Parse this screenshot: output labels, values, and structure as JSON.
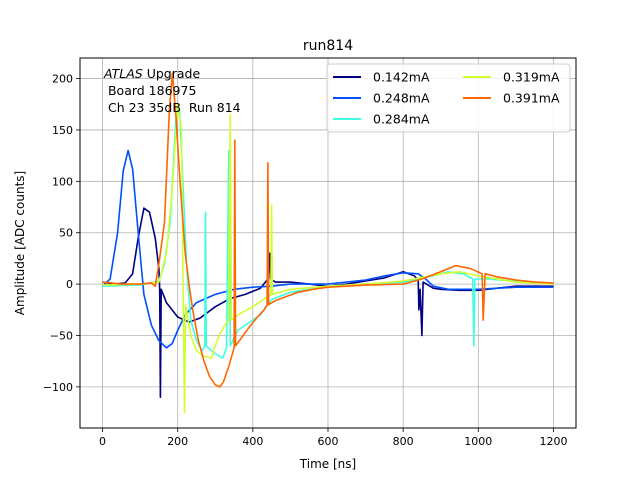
{
  "chart_data": {
    "type": "line",
    "title": "run814",
    "xlabel": "Time [ns]",
    "ylabel": "Amplitude [ADC counts]",
    "xlim": [
      -60,
      1260
    ],
    "ylim": [
      -140,
      220
    ],
    "xticks": [
      0,
      200,
      400,
      600,
      800,
      1000,
      1200
    ],
    "yticks": [
      -100,
      -50,
      0,
      50,
      100,
      150,
      200
    ],
    "grid": true,
    "legend_position": "top-right",
    "legend_columns": 2,
    "annotation": {
      "italic": "ATLAS",
      "line1_rest": " Upgrade",
      "line2": " Board 186975",
      "line3": " Ch 23 35dB  Run 814"
    },
    "series": [
      {
        "name": "0.142mA",
        "color": "#000080",
        "points": [
          [
            0,
            2
          ],
          [
            30,
            0
          ],
          [
            60,
            1
          ],
          [
            80,
            10
          ],
          [
            95,
            45
          ],
          [
            110,
            74
          ],
          [
            125,
            70
          ],
          [
            140,
            45
          ],
          [
            150,
            15
          ],
          [
            152,
            -5
          ],
          [
            154,
            -110
          ],
          [
            156,
            -5
          ],
          [
            170,
            -18
          ],
          [
            200,
            -32
          ],
          [
            230,
            -37
          ],
          [
            260,
            -33
          ],
          [
            300,
            -22
          ],
          [
            340,
            -14
          ],
          [
            380,
            -10
          ],
          [
            420,
            -4
          ],
          [
            440,
            5
          ],
          [
            445,
            30
          ],
          [
            447,
            5
          ],
          [
            460,
            2
          ],
          [
            500,
            2
          ],
          [
            550,
            0
          ],
          [
            600,
            -2
          ],
          [
            650,
            0
          ],
          [
            700,
            3
          ],
          [
            750,
            6
          ],
          [
            800,
            12
          ],
          [
            830,
            8
          ],
          [
            840,
            4
          ],
          [
            842,
            -25
          ],
          [
            845,
            -5
          ],
          [
            850,
            -50
          ],
          [
            853,
            2
          ],
          [
            880,
            -4
          ],
          [
            900,
            -5
          ],
          [
            950,
            -6
          ],
          [
            1000,
            -6
          ],
          [
            1050,
            -4
          ],
          [
            1100,
            -2
          ],
          [
            1150,
            -2
          ],
          [
            1200,
            -2
          ]
        ]
      },
      {
        "name": "0.248mA",
        "color": "#0050ff",
        "points": [
          [
            0,
            -2
          ],
          [
            20,
            5
          ],
          [
            40,
            50
          ],
          [
            55,
            110
          ],
          [
            68,
            130
          ],
          [
            80,
            112
          ],
          [
            95,
            50
          ],
          [
            110,
            -10
          ],
          [
            130,
            -40
          ],
          [
            150,
            -55
          ],
          [
            170,
            -62
          ],
          [
            185,
            -58
          ],
          [
            200,
            -45
          ],
          [
            220,
            -30
          ],
          [
            250,
            -18
          ],
          [
            300,
            -10
          ],
          [
            350,
            -5
          ],
          [
            400,
            -3
          ],
          [
            450,
            -2
          ],
          [
            500,
            0
          ],
          [
            600,
            0
          ],
          [
            700,
            4
          ],
          [
            750,
            8
          ],
          [
            800,
            11
          ],
          [
            840,
            10
          ],
          [
            860,
            5
          ],
          [
            880,
            -2
          ],
          [
            920,
            -5
          ],
          [
            1000,
            -5
          ],
          [
            1100,
            -3
          ],
          [
            1200,
            -3
          ]
        ]
      },
      {
        "name": "0.284mA",
        "color": "#40ffe0",
        "points": [
          [
            0,
            -2
          ],
          [
            100,
            -1
          ],
          [
            150,
            3
          ],
          [
            165,
            20
          ],
          [
            180,
            60
          ],
          [
            195,
            160
          ],
          [
            205,
            170
          ],
          [
            215,
            90
          ],
          [
            225,
            10
          ],
          [
            235,
            -35
          ],
          [
            250,
            -55
          ],
          [
            265,
            -65
          ],
          [
            272,
            -60
          ],
          [
            274,
            70
          ],
          [
            276,
            -60
          ],
          [
            290,
            -65
          ],
          [
            310,
            -70
          ],
          [
            320,
            -72
          ],
          [
            330,
            -62
          ],
          [
            336,
            130
          ],
          [
            340,
            -60
          ],
          [
            360,
            -45
          ],
          [
            400,
            -35
          ],
          [
            420,
            -30
          ],
          [
            440,
            -20
          ],
          [
            450,
            -15
          ],
          [
            500,
            -8
          ],
          [
            550,
            -5
          ],
          [
            600,
            -2
          ],
          [
            700,
            0
          ],
          [
            800,
            2
          ],
          [
            880,
            8
          ],
          [
            920,
            12
          ],
          [
            960,
            10
          ],
          [
            985,
            5
          ],
          [
            988,
            -60
          ],
          [
            991,
            5
          ],
          [
            1020,
            5
          ],
          [
            1100,
            3
          ],
          [
            1200,
            0
          ]
        ]
      },
      {
        "name": "0.319mA",
        "color": "#d0ff30",
        "points": [
          [
            0,
            -1
          ],
          [
            100,
            0
          ],
          [
            150,
            2
          ],
          [
            170,
            30
          ],
          [
            185,
            90
          ],
          [
            200,
            175
          ],
          [
            210,
            150
          ],
          [
            215,
            -20
          ],
          [
            218,
            -125
          ],
          [
            221,
            -20
          ],
          [
            235,
            -50
          ],
          [
            250,
            -65
          ],
          [
            270,
            -70
          ],
          [
            290,
            -72
          ],
          [
            300,
            -60
          ],
          [
            310,
            -50
          ],
          [
            325,
            -40
          ],
          [
            335,
            -35
          ],
          [
            340,
            165
          ],
          [
            343,
            -35
          ],
          [
            360,
            -30
          ],
          [
            400,
            -22
          ],
          [
            440,
            -12
          ],
          [
            448,
            -10
          ],
          [
            450,
            77
          ],
          [
            452,
            -10
          ],
          [
            500,
            -5
          ],
          [
            600,
            -2
          ],
          [
            700,
            0
          ],
          [
            800,
            3
          ],
          [
            900,
            10
          ],
          [
            950,
            12
          ],
          [
            1000,
            8
          ],
          [
            1100,
            2
          ],
          [
            1200,
            0
          ]
        ]
      },
      {
        "name": "0.391mA",
        "color": "#ff6600",
        "points": [
          [
            0,
            2
          ],
          [
            50,
            0
          ],
          [
            100,
            0
          ],
          [
            130,
            1
          ],
          [
            140,
            -2
          ],
          [
            150,
            20
          ],
          [
            165,
            60
          ],
          [
            178,
            170
          ],
          [
            186,
            205
          ],
          [
            196,
            160
          ],
          [
            206,
            100
          ],
          [
            220,
            30
          ],
          [
            232,
            -5
          ],
          [
            240,
            -25
          ],
          [
            255,
            -55
          ],
          [
            270,
            -75
          ],
          [
            285,
            -90
          ],
          [
            300,
            -98
          ],
          [
            312,
            -100
          ],
          [
            322,
            -95
          ],
          [
            336,
            -80
          ],
          [
            350,
            -62
          ],
          [
            352,
            140
          ],
          [
            354,
            -60
          ],
          [
            370,
            -52
          ],
          [
            390,
            -42
          ],
          [
            410,
            -33
          ],
          [
            430,
            -25
          ],
          [
            438,
            -20
          ],
          [
            440,
            118
          ],
          [
            442,
            -20
          ],
          [
            460,
            -16
          ],
          [
            490,
            -12
          ],
          [
            520,
            -8
          ],
          [
            560,
            -5
          ],
          [
            600,
            -3
          ],
          [
            700,
            -1
          ],
          [
            800,
            0
          ],
          [
            850,
            5
          ],
          [
            900,
            12
          ],
          [
            940,
            18
          ],
          [
            980,
            15
          ],
          [
            1010,
            10
          ],
          [
            1013,
            -35
          ],
          [
            1018,
            10
          ],
          [
            1050,
            7
          ],
          [
            1100,
            4
          ],
          [
            1150,
            2
          ],
          [
            1200,
            1
          ]
        ]
      }
    ]
  }
}
